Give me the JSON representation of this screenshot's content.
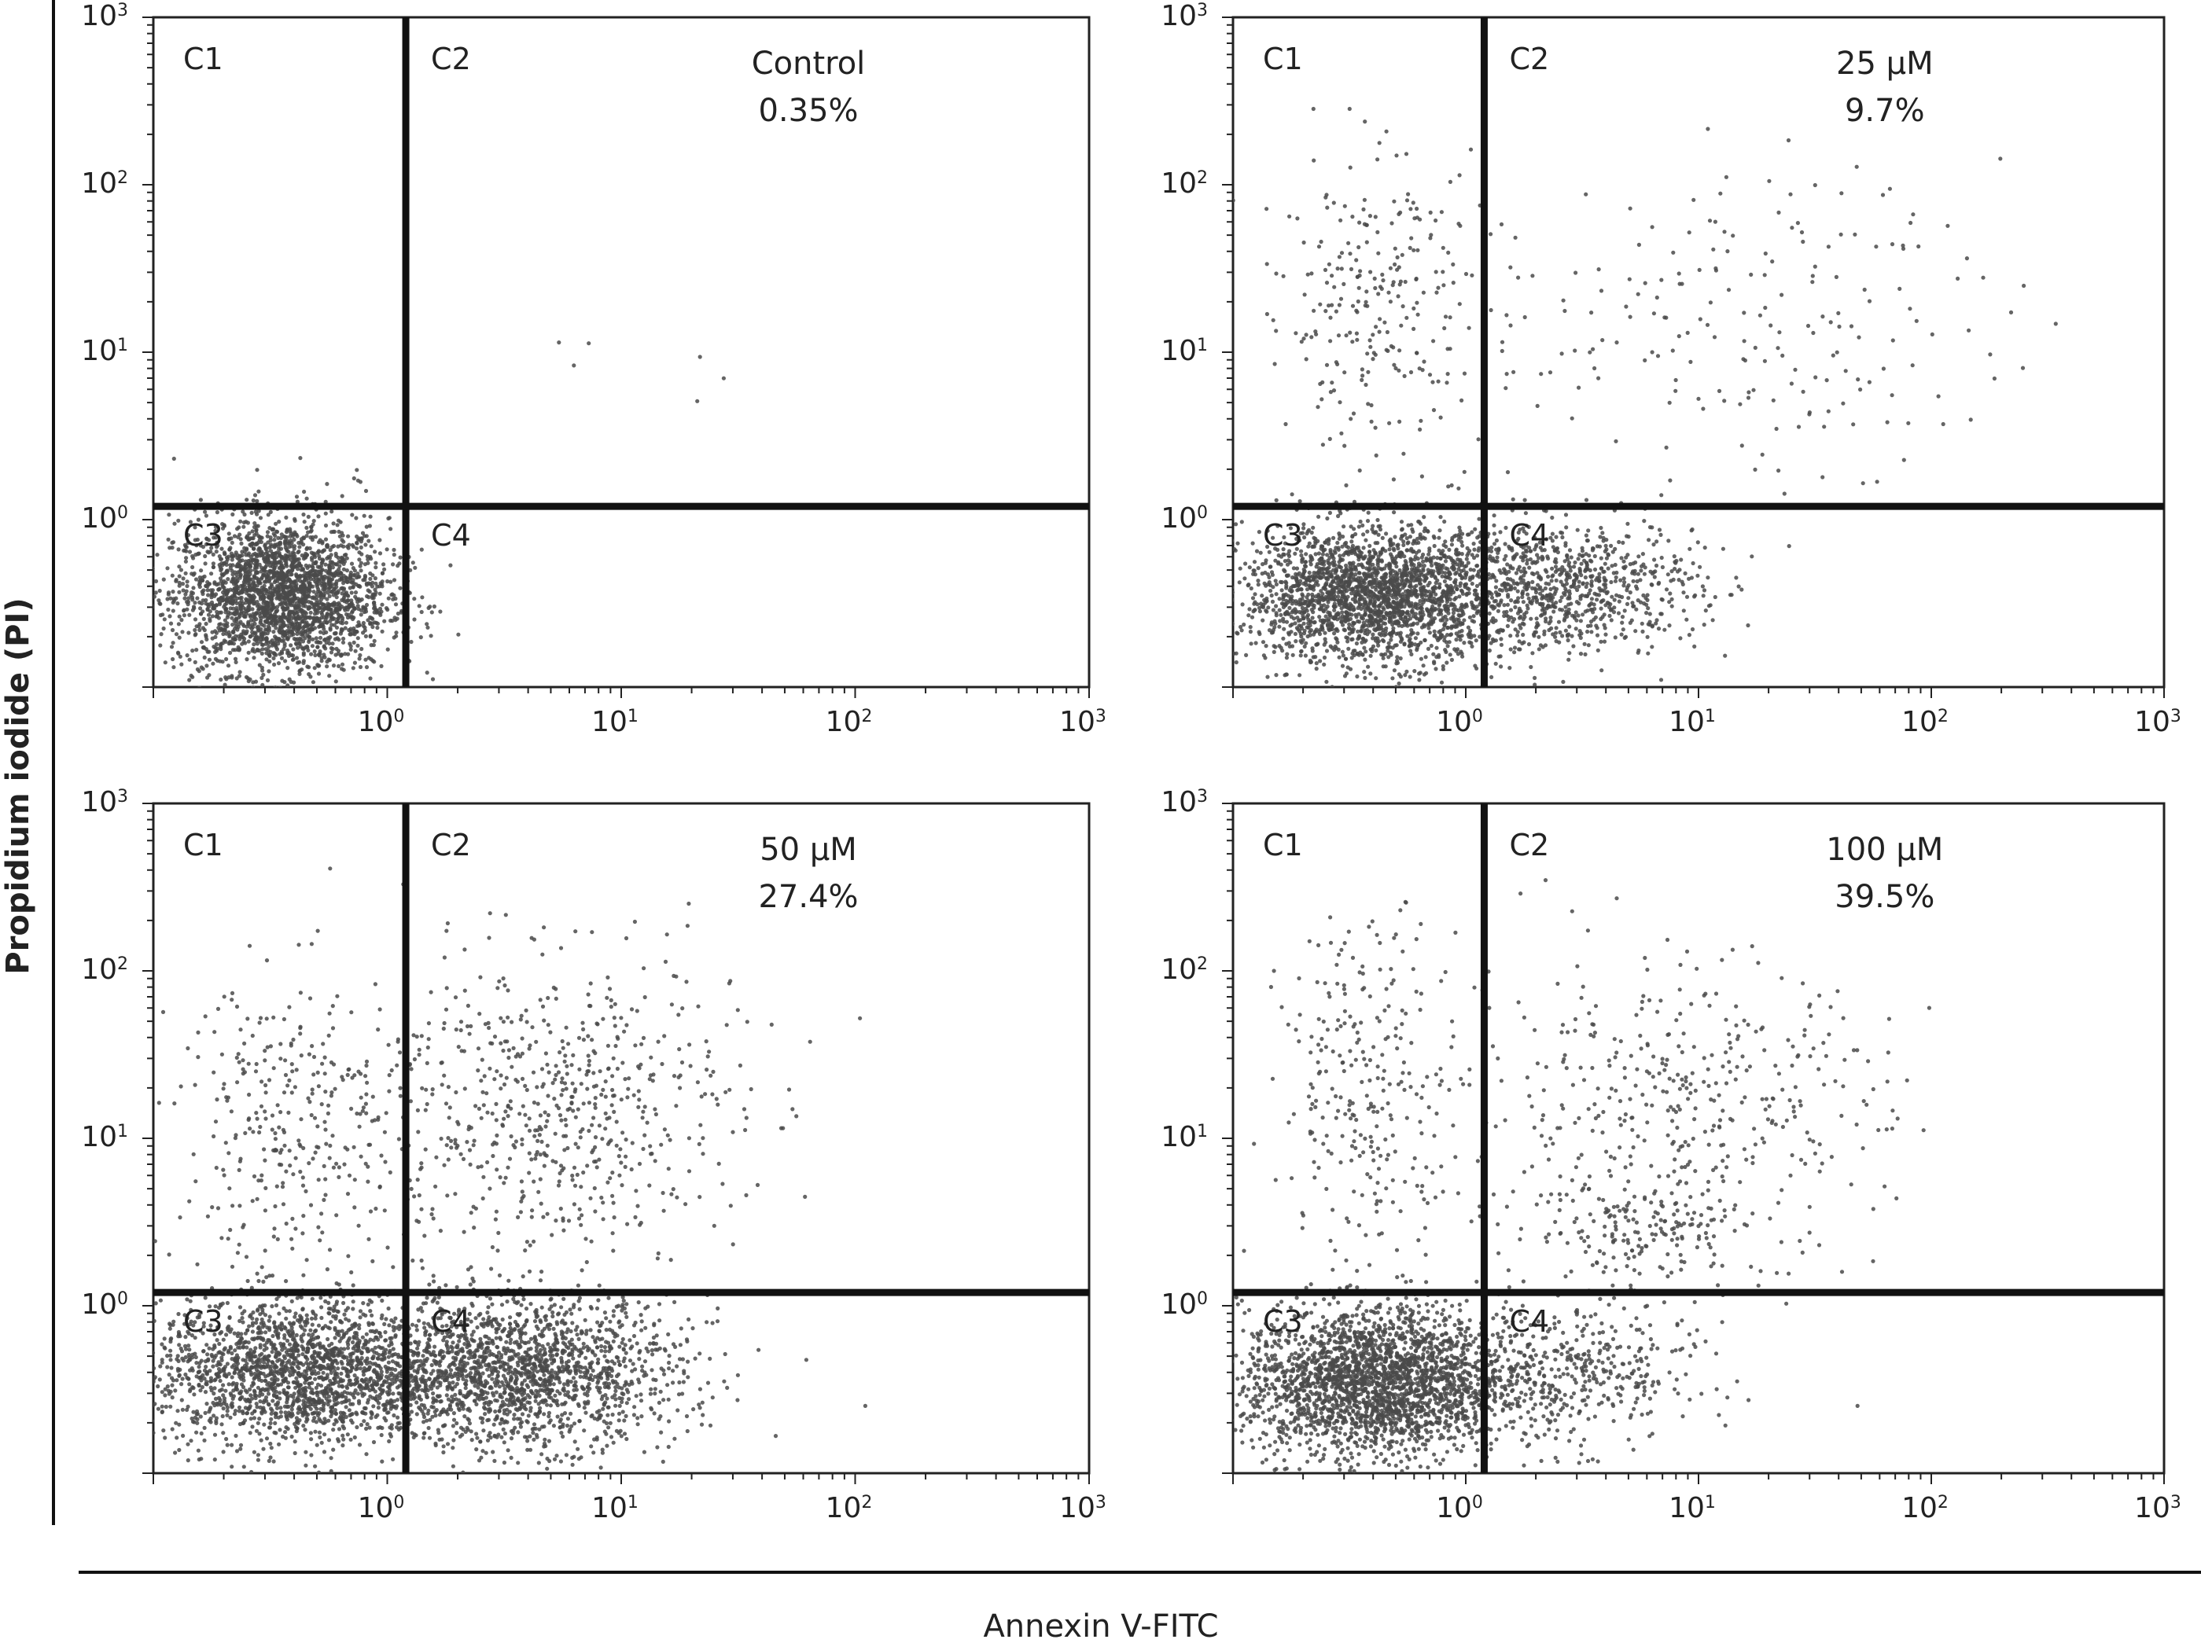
{
  "figure": {
    "ylabel": "Propidium iodide (PI)",
    "xlabel": "Annexin V-FITC",
    "tick_labels": [
      "10",
      "10",
      "10",
      "10"
    ],
    "tick_exponents": [
      "0",
      "1",
      "2",
      "3"
    ],
    "quadrant_labels": [
      "C1",
      "C2",
      "C3",
      "C4"
    ]
  },
  "chart_data": [
    {
      "type": "scatter",
      "title": "Control",
      "annotation": "0.35%",
      "x_scale": "log",
      "y_scale": "log",
      "xlim": [
        0.1,
        1000
      ],
      "ylim": [
        0.1,
        1000
      ],
      "gate": {
        "x": 1.2,
        "y": 1.2
      },
      "clusters": [
        {
          "quadrant": "C3",
          "cx": 0.35,
          "cy": 0.35,
          "sx": 0.23,
          "sy": 0.23,
          "n": 2600
        },
        {
          "quadrant": "C1",
          "cx": 0.45,
          "cy": 1.5,
          "sx": 0.15,
          "sy": 0.12,
          "n": 10
        },
        {
          "quadrant": "C2",
          "cx": 10,
          "cy": 8,
          "sx": 0.3,
          "sy": 0.3,
          "n": 6
        }
      ]
    },
    {
      "type": "scatter",
      "title": "25 μM",
      "annotation": "9.7%",
      "x_scale": "log",
      "y_scale": "log",
      "xlim": [
        0.1,
        1000
      ],
      "ylim": [
        0.1,
        1000
      ],
      "gate": {
        "x": 1.2,
        "y": 1.2
      },
      "clusters": [
        {
          "quadrant": "C3",
          "cx": 0.4,
          "cy": 0.35,
          "sx": 0.28,
          "sy": 0.2,
          "n": 2300
        },
        {
          "quadrant": "C4",
          "cx": 2.5,
          "cy": 0.4,
          "sx": 0.3,
          "sy": 0.2,
          "n": 900
        },
        {
          "quadrant": "C1",
          "cx": 0.4,
          "cy": 20,
          "sx": 0.25,
          "sy": 0.45,
          "n": 260
        },
        {
          "quadrant": "C2",
          "cx": 15,
          "cy": 15,
          "sx": 0.55,
          "sy": 0.45,
          "n": 200
        }
      ]
    },
    {
      "type": "scatter",
      "title": "50 μM",
      "annotation": "27.4%",
      "x_scale": "log",
      "y_scale": "log",
      "xlim": [
        0.1,
        1000
      ],
      "ylim": [
        0.1,
        1000
      ],
      "gate": {
        "x": 1.2,
        "y": 1.2
      },
      "clusters": [
        {
          "quadrant": "C3",
          "cx": 0.4,
          "cy": 0.4,
          "sx": 0.3,
          "sy": 0.22,
          "n": 1900
        },
        {
          "quadrant": "C4",
          "cx": 3.5,
          "cy": 0.4,
          "sx": 0.35,
          "sy": 0.22,
          "n": 1900
        },
        {
          "quadrant": "C1",
          "cx": 0.4,
          "cy": 12,
          "sx": 0.25,
          "sy": 0.45,
          "n": 300
        },
        {
          "quadrant": "C2",
          "cx": 5,
          "cy": 15,
          "sx": 0.4,
          "sy": 0.45,
          "n": 650
        }
      ]
    },
    {
      "type": "scatter",
      "title": "100 μM",
      "annotation": "39.5%",
      "x_scale": "log",
      "y_scale": "log",
      "xlim": [
        0.1,
        1000
      ],
      "ylim": [
        0.1,
        1000
      ],
      "gate": {
        "x": 1.2,
        "y": 1.2
      },
      "clusters": [
        {
          "quadrant": "C3",
          "cx": 0.4,
          "cy": 0.35,
          "sx": 0.28,
          "sy": 0.22,
          "n": 2500
        },
        {
          "quadrant": "C4",
          "cx": 2.5,
          "cy": 0.4,
          "sx": 0.3,
          "sy": 0.22,
          "n": 500
        },
        {
          "quadrant": "C1",
          "cx": 0.4,
          "cy": 20,
          "sx": 0.2,
          "sy": 0.5,
          "n": 280
        },
        {
          "quadrant": "C2",
          "cx": 8,
          "cy": 15,
          "sx": 0.45,
          "sy": 0.45,
          "n": 420
        },
        {
          "quadrant": "C2",
          "cx": 6,
          "cy": 3,
          "sx": 0.25,
          "sy": 0.15,
          "n": 160
        }
      ]
    }
  ]
}
